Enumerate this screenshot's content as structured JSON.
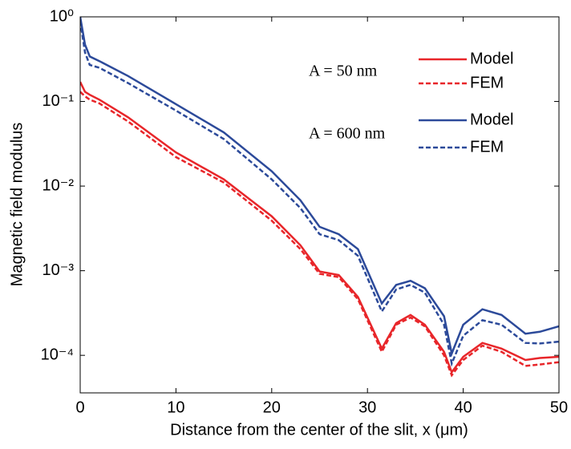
{
  "chart_data": {
    "type": "line",
    "y_label": "Magnetic field modulus",
    "x_label": "Distance from the center of the slit, x (μm)",
    "annotations": [
      "A = 50 nm",
      "A = 600 nm"
    ],
    "log_y": true,
    "x": [
      0,
      0.5,
      1,
      2,
      5,
      10,
      15,
      20,
      23,
      25,
      27,
      29,
      31.5,
      33,
      34.5,
      36,
      38,
      38.8,
      40,
      42,
      44,
      46.5,
      48,
      50
    ],
    "series": [
      {
        "name": "Model",
        "color": "#e8262a",
        "dash": false,
        "values": [
          0.17,
          0.13,
          0.12,
          0.105,
          0.065,
          0.025,
          0.012,
          0.0044,
          0.002,
          0.00098,
          0.00089,
          0.00049,
          0.00012,
          0.00024,
          0.0003,
          0.00023,
          0.00011,
          6.3e-05,
          9.6e-05,
          0.00014,
          0.00012,
          8.8e-05,
          9.3e-05,
          9.6e-05
        ]
      },
      {
        "name": "FEM",
        "color": "#e8262a",
        "dash": true,
        "values": [
          0.13,
          0.115,
          0.105,
          0.095,
          0.058,
          0.022,
          0.011,
          0.0039,
          0.0018,
          0.00092,
          0.00084,
          0.00046,
          0.00011,
          0.00023,
          0.00028,
          0.00022,
          0.0001,
          5.8e-05,
          8.8e-05,
          0.00013,
          0.00011,
          7.5e-05,
          7.8e-05,
          8.3e-05
        ]
      },
      {
        "name": "Model",
        "color": "#2c4a9a",
        "dash": false,
        "values": [
          1.0,
          0.47,
          0.34,
          0.3,
          0.2,
          0.093,
          0.043,
          0.015,
          0.0068,
          0.0033,
          0.0027,
          0.0018,
          0.00041,
          0.00068,
          0.00076,
          0.00062,
          0.00029,
          0.000105,
          0.00023,
          0.00035,
          0.0003,
          0.00018,
          0.00019,
          0.00022
        ]
      },
      {
        "name": "FEM",
        "color": "#2c4a9a",
        "dash": true,
        "values": [
          0.9,
          0.38,
          0.27,
          0.25,
          0.165,
          0.078,
          0.036,
          0.012,
          0.0055,
          0.0027,
          0.0023,
          0.0015,
          0.00033,
          0.0006,
          0.00068,
          0.00055,
          0.00023,
          8e-05,
          0.00017,
          0.00026,
          0.00023,
          0.00014,
          0.000138,
          0.000145
        ]
      }
    ],
    "xlim": [
      0,
      50
    ],
    "xticks": [
      0,
      10,
      20,
      30,
      40,
      50
    ],
    "ylim": [
      3.6e-05,
      1
    ],
    "yticks": [
      {
        "value": 1,
        "label": "10⁰"
      },
      {
        "value": 0.1,
        "label": "10⁻¹"
      },
      {
        "value": 0.01,
        "label": "10⁻²"
      },
      {
        "value": 0.001,
        "label": "10⁻³"
      },
      {
        "value": 0.0001,
        "label": "10⁻⁴"
      }
    ]
  }
}
